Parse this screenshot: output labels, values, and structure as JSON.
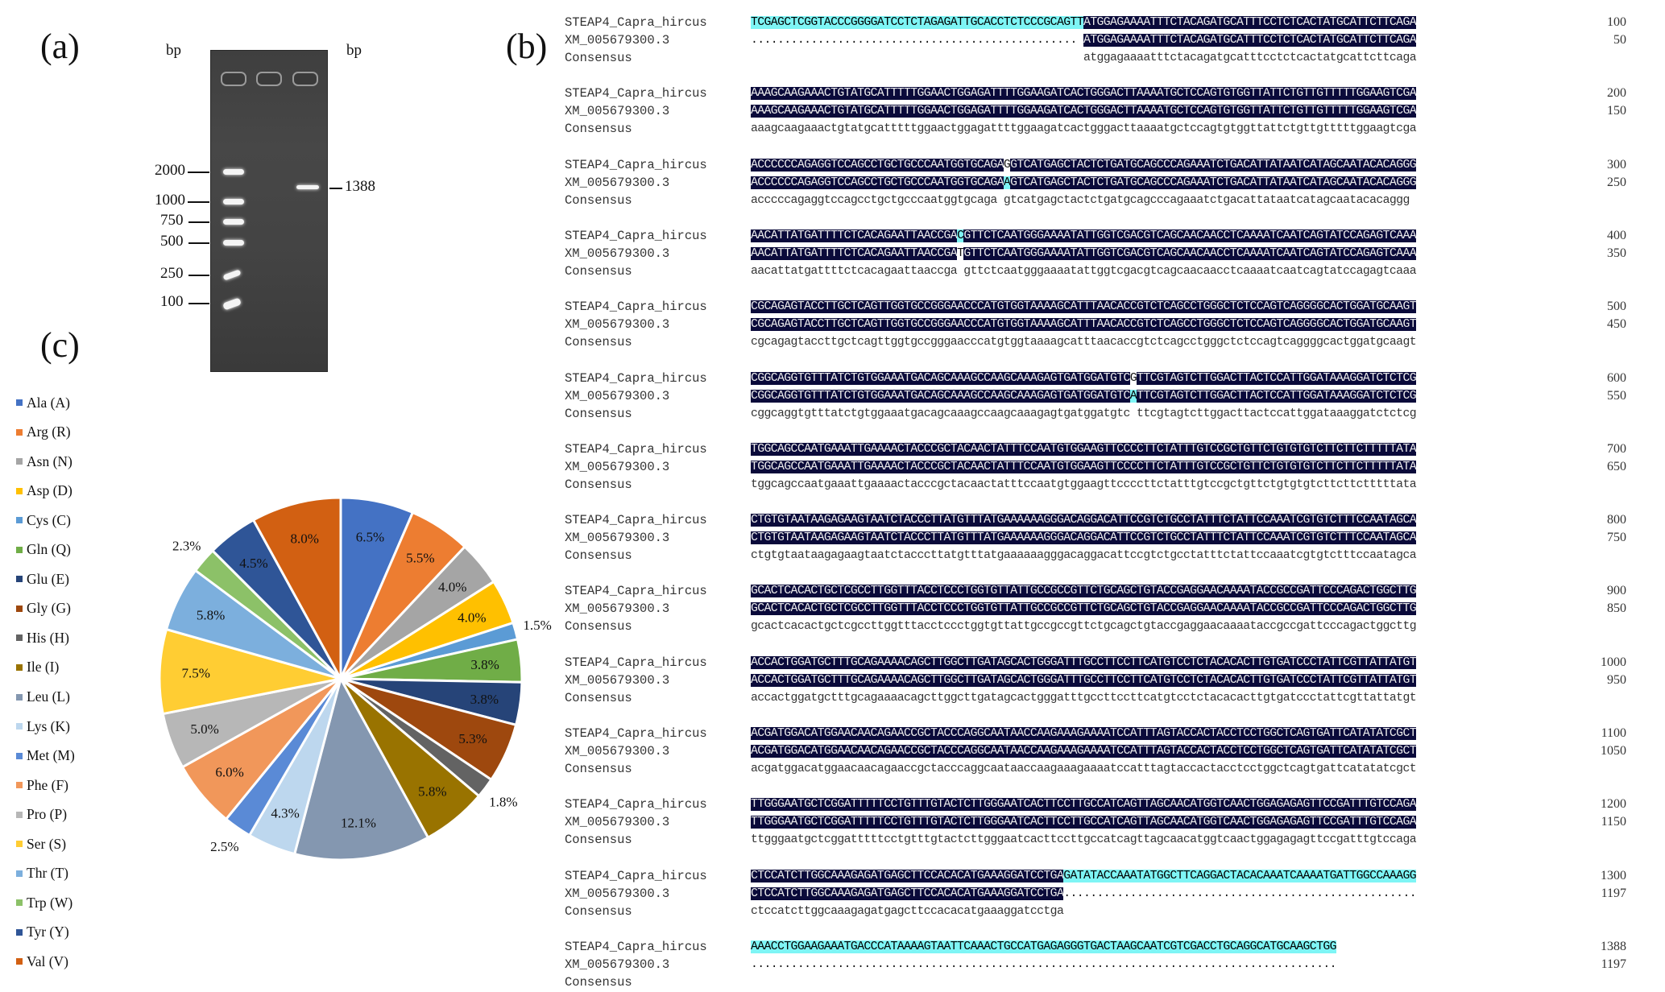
{
  "panels": {
    "a": "(a)",
    "b": "(b)",
    "c": "(c)"
  },
  "gel": {
    "unit_left": "bp",
    "unit_right": "bp",
    "ladder": [
      {
        "label": "2000",
        "bp": 2000
      },
      {
        "label": "1000",
        "bp": 1000
      },
      {
        "label": "750",
        "bp": 750
      },
      {
        "label": "500",
        "bp": 500
      },
      {
        "label": "250",
        "bp": 250
      },
      {
        "label": "100",
        "bp": 100
      }
    ],
    "product_band": {
      "label": "1388",
      "bp": 1388
    },
    "lanes": 3
  },
  "alignment": {
    "names": [
      "STEAP4_Capra_hircus",
      "XM_005679300.3",
      "Consensus"
    ],
    "colors": {
      "identical": "#0a0a3a",
      "mismatch": "#7ef5f5"
    },
    "blocks": [
      {
        "seq1": [
          [
            "c",
            "TCGAGCTCGGTACCCGGGGATCCTCTAGAGATTGCACCTCTCCCGCAGTT"
          ],
          [
            "i",
            "ATGGAGAAAATTTCTACAGATGCATTTCCTCTCACTATGCATTCTTCAGA"
          ]
        ],
        "seq2": [
          [
            "d",
            "................................................. "
          ],
          [
            "i",
            "ATGGAGAAAATTTCTACAGATGCATTTCCTCTCACTATGCATTCTTCAGA"
          ]
        ],
        "cons": "                                                  atggagaaaatttctacagatgcatttcctctcactatgcattcttcaga",
        "n1": "100",
        "n2": "50"
      },
      {
        "seq1": [
          [
            "i",
            "AAAGCAAGAAACTGTATGCATTTTTGGAACTGGAGATTTTGGAAGATCACTGGGACTTAAAATGCTCCAGTGTGGTTATTCTGTTGTTTTTGGAAGTCGA"
          ]
        ],
        "seq2": [
          [
            "i",
            "AAAGCAAGAAACTGTATGCATTTTTGGAACTGGAGATTTTGGAAGATCACTGGGACTTAAAATGCTCCAGTGTGGTTATTCTGTTGTTTTTGGAAGTCGA"
          ]
        ],
        "cons": "aaagcaagaaactgtatgcatttttggaactggagattttggaagatcactgggacttaaaatgctccagtgtggttattctgttgtttttggaagtcga",
        "n1": "200",
        "n2": "150"
      },
      {
        "seq1": [
          [
            "i",
            "ACCCCCCAGAGGTCCAGCCTGCTGCCCAATGGTGCAGA"
          ],
          [
            "w",
            "G"
          ],
          [
            "i",
            "GTCATGAGCTACTCTGATGCAGCCCAGAAATCTGACATTATAATCATAGCAATACACAGGG"
          ]
        ],
        "seq2": [
          [
            "i",
            "ACCCCCCAGAGGTCCAGCCTGCTGCCCAATGGTGCAGA"
          ],
          [
            "m",
            "A"
          ],
          [
            "i",
            "GTCATGAGCTACTCTGATGCAGCCCAGAAATCTGACATTATAATCATAGCAATACACAGGG"
          ]
        ],
        "cons": "acccccagaggtccagcctgctgcccaatggtgcaga gtcatgagctactctgatgcagcccagaaatctgacattataatcatagcaatacacaggg",
        "n1": "300",
        "n2": "250"
      },
      {
        "seq1": [
          [
            "i",
            "AACATTATGATTTTCTCACAGAATTAACCGA"
          ],
          [
            "m",
            "C"
          ],
          [
            "i",
            "GTTCTCAATGGGAAAATATTGGTCGACGTCAGCAACAACCTCAAAATCAATCAGTATCCAGAGTCAAA"
          ]
        ],
        "seq2": [
          [
            "i",
            "AACATTATGATTTTCTCACAGAATTAACCGA"
          ],
          [
            "w",
            "T"
          ],
          [
            "i",
            "GTTCTCAATGGGAAAATATTGGTCGACGTCAGCAACAACCTCAAAATCAATCAGTATCCAGAGTCAAA"
          ]
        ],
        "cons": "aacattatgattttctcacagaattaaccga gttctcaatgggaaaatattggtcgacgtcagcaacaacctcaaaatcaatcagtatccagagtcaaa",
        "n1": "400",
        "n2": "350"
      },
      {
        "seq1": [
          [
            "i",
            "CGCAGAGTACCTTGCTCAGTTGGTGCCGGGAACCCATGTGGTAAAAGCATTTAACACCGTCTCAGCCTGGGCTCTCCAGTCAGGGGCACTGGATGCAAGT"
          ]
        ],
        "seq2": [
          [
            "i",
            "CGCAGAGTACCTTGCTCAGTTGGTGCCGGGAACCCATGTGGTAAAAGCATTTAACACCGTCTCAGCCTGGGCTCTCCAGTCAGGGGCACTGGATGCAAGT"
          ]
        ],
        "cons": "cgcagagtaccttgctcagttggtgccgggaacccatgtggtaaaagcatttaacaccgtctcagcctgggctctccagtcaggggcactggatgcaagt",
        "n1": "500",
        "n2": "450"
      },
      {
        "seq1": [
          [
            "i",
            "CGGCAGGTGTTTATCTGTGGAAATGACAGCAAAGCCAAGCAAAGAGTGATGGATGTC"
          ],
          [
            "w",
            "G"
          ],
          [
            "i",
            "TTCGTAGTCTTGGACTTACTCCATTGGATAAAGGATCTCTCG"
          ]
        ],
        "seq2": [
          [
            "i",
            "CGGCAGGTGTTTATCTGTGGAAATGACAGCAAAGCCAAGCAAAGAGTGATGGATGTC"
          ],
          [
            "m",
            "A"
          ],
          [
            "i",
            "TTCGTAGTCTTGGACTTACTCCATTGGATAAAGGATCTCTCG"
          ]
        ],
        "cons": "cggcaggtgtttatctgtggaaatgacagcaaagccaagcaaagagtgatggatgtc ttcgtagtcttggacttactccattggataaaggatctctcg",
        "n1": "600",
        "n2": "550"
      },
      {
        "seq1": [
          [
            "i",
            "TGGCAGCCAATGAAATTGAAAACTACCCGCTACAACTATTTCCAATGTGGAAGTTCCCCTTCTATTTGTCCGCTGTTCTGTGTGTCTTCTTCTTTTTATA"
          ]
        ],
        "seq2": [
          [
            "i",
            "TGGCAGCCAATGAAATTGAAAACTACCCGCTACAACTATTTCCAATGTGGAAGTTCCCCTTCTATTTGTCCGCTGTTCTGTGTGTCTTCTTCTTTTTATA"
          ]
        ],
        "cons": "tggcagccaatgaaattgaaaactacccgctacaactatttccaatgtggaagttccccttctatttgtccgctgttctgtgtgtcttcttctttttata",
        "n1": "700",
        "n2": "650"
      },
      {
        "seq1": [
          [
            "i",
            "CTGTGTAATAAGAGAAGTAATCTACCCTTATGTTTATGAAAAAAGGGACAGGACATTCCGTCTGCCTATTTCTATTCCAAATCGTGTCTTTCCAATAGCA"
          ]
        ],
        "seq2": [
          [
            "i",
            "CTGTGTAATAAGAGAAGTAATCTACCCTTATGTTTATGAAAAAAGGGACAGGACATTCCGTCTGCCTATTTCTATTCCAAATCGTGTCTTTCCAATAGCA"
          ]
        ],
        "cons": "ctgtgtaataagagaagtaatctacccttatgtttatgaaaaaagggacaggacattccgtctgcctatttctattccaaatcgtgtctttccaatagca",
        "n1": "800",
        "n2": "750"
      },
      {
        "seq1": [
          [
            "i",
            "GCACTCACACTGCTCGCCTTGGTTTACCTCCCTGGTGTTATTGCCGCCGTTCTGCAGCTGTACCGAGGAACAAAATACCGCCGATTCCCAGACTGGCTTG"
          ]
        ],
        "seq2": [
          [
            "i",
            "GCACTCACACTGCTCGCCTTGGTTTACCTCCCTGGTGTTATTGCCGCCGTTCTGCAGCTGTACCGAGGAACAAAATACCGCCGATTCCCAGACTGGCTTG"
          ]
        ],
        "cons": "gcactcacactgctcgccttggtttacctccctggtgttattgccgccgttctgcagctgtaccgaggaacaaaataccgccgattcccagactggcttg",
        "n1": "900",
        "n2": "850"
      },
      {
        "seq1": [
          [
            "i",
            "ACCACTGGATGCTTTGCAGAAAACAGCTTGGCTTGATAGCACTGGGATTTGCCTTCCTTCATGTCCTCTACACACTTGTGATCCCTATTCGTTATTATGT"
          ]
        ],
        "seq2": [
          [
            "i",
            "ACCACTGGATGCTTTGCAGAAAACAGCTTGGCTTGATAGCACTGGGATTTGCCTTCCTTCATGTCCTCTACACACTTGTGATCCCTATTCGTTATTATGT"
          ]
        ],
        "cons": "accactggatgctttgcagaaaacagcttggcttgatagcactgggatttgccttccttcatgtcctctacacacttgtgatccctattcgttattatgt",
        "n1": "1000",
        "n2": "950"
      },
      {
        "seq1": [
          [
            "i",
            "ACGATGGACATGGAACAACAGAACCGCTACCCAGGCAATAACCAAGAAAGAAAATCCATTTAGTACCACTACCTCCTGGCTCAGTGATTCATATATCGCT"
          ]
        ],
        "seq2": [
          [
            "i",
            "ACGATGGACATGGAACAACAGAACCGCTACCCAGGCAATAACCAAGAAAGAAAATCCATTTAGTACCACTACCTCCTGGCTCAGTGATTCATATATCGCT"
          ]
        ],
        "cons": "acgatggacatggaacaacagaaccgctacccaggcaataaccaagaaagaaaatccatttagtaccactacctcctggctcagtgattcatatatcgct",
        "n1": "1100",
        "n2": "1050"
      },
      {
        "seq1": [
          [
            "i",
            "TTGGGAATGCTCGGATTTTTCCTGTTTGTACTCTTGGGAATCACTTCCTTGCCATCAGTTAGCAACATGGTCAACTGGAGAGAGTTCCGATTTGTCCAGA"
          ]
        ],
        "seq2": [
          [
            "i",
            "TTGGGAATGCTCGGATTTTTCCTGTTTGTACTCTTGGGAATCACTTCCTTGCCATCAGTTAGCAACATGGTCAACTGGAGAGAGTTCCGATTTGTCCAGA"
          ]
        ],
        "cons": "ttgggaatgctcggatttttcctgtttgtactcttgggaatcacttccttgccatcagttagcaacatggtcaactggagagagttccgatttgtccaga",
        "n1": "1200",
        "n2": "1150"
      },
      {
        "seq1": [
          [
            "i",
            "CTCCATCTTGGCAAAGAGATGAGCTTCCACACATGAAAGGATCCTGA"
          ],
          [
            "c",
            "GATATACCAAATATGGCTTCAGGACTACACAAATCAAAATGATTGGCCAAAGG"
          ]
        ],
        "seq2": [
          [
            "i",
            "CTCCATCTTGGCAAAGAGATGAGCTTCCACACATGAAAGGATCCTGA"
          ],
          [
            "d",
            "....................................................."
          ]
        ],
        "cons": "ctccatcttggcaaagagatgagcttccacacatgaaaggatcctga",
        "n1": "1300",
        "n2": "1197"
      },
      {
        "seq1": [
          [
            "c",
            "AAACCTGGAAGAAATGACCCATAAAAGTAATTCAAACTGCCATGAGAGGGTGACTAAGCAATCGTCGACCTGCAGGCATGCAAGCTGG"
          ]
        ],
        "seq2": [
          [
            "d",
            "........................................................................................"
          ]
        ],
        "cons": "",
        "n1": "1388",
        "n2": "1197"
      }
    ]
  },
  "chart_data": {
    "type": "pie",
    "title": "",
    "legend_position": "left",
    "categories": [
      "Ala (A)",
      "Arg (R)",
      "Asn (N)",
      "Asp (D)",
      "Cys (C)",
      "Gln (Q)",
      "Glu (E)",
      "Gly (G)",
      "His (H)",
      "Ile (I)",
      "Leu (L)",
      "Lys (K)",
      "Met (M)",
      "Phe (F)",
      "Pro (P)",
      "Ser (S)",
      "Thr (T)",
      "Trp (W)",
      "Tyr (Y)",
      "Val (V)"
    ],
    "values": [
      6.5,
      5.5,
      4.0,
      4.0,
      1.5,
      3.8,
      3.8,
      5.3,
      1.8,
      5.8,
      12.1,
      4.3,
      2.5,
      6.0,
      5.0,
      7.5,
      5.8,
      2.3,
      4.5,
      8.0
    ],
    "labels": [
      "6.5%",
      "5.5%",
      "4.0%",
      "4.0%",
      "1.5%",
      "3.8%",
      "3.8%",
      "5.3%",
      "1.8%",
      "5.8%",
      "12.1%",
      "4.3%",
      "2.5%",
      "6.0%",
      "5.0%",
      "7.5%",
      "5.8%",
      "2.3%",
      "4.5%",
      "8.0%"
    ],
    "colors": [
      "#4472c4",
      "#ed7d31",
      "#a5a5a5",
      "#ffc000",
      "#5b9bd5",
      "#70ad47",
      "#264478",
      "#9e480e",
      "#636363",
      "#997300",
      "#8497b0",
      "#bdd7ee",
      "#5a8ad6",
      "#f1975a",
      "#b7b7b7",
      "#ffcd33",
      "#7cafdd",
      "#8cc168",
      "#2f5597",
      "#d26012"
    ],
    "label_outside": [
      false,
      false,
      false,
      false,
      true,
      false,
      false,
      false,
      true,
      false,
      false,
      false,
      true,
      false,
      false,
      false,
      false,
      true,
      false,
      false
    ],
    "unit": "%"
  }
}
